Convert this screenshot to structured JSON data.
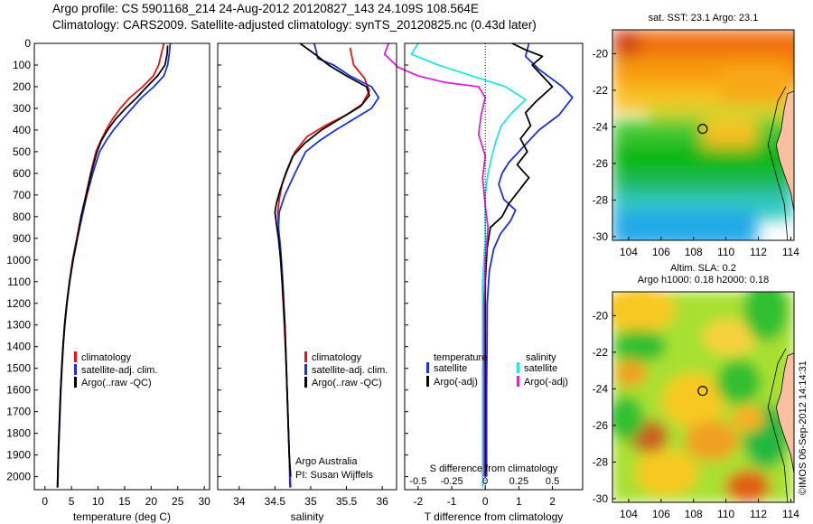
{
  "header": {
    "line1": "Argo profile: CS 5901168_214 24-Aug-2012 20120827_143 24.109S 108.564E",
    "line2": "Climatology: CARS2009. Satellite-adjusted climatology: synTS_20120825.nc (0.43d later)"
  },
  "watermark": "©IMOS 06-Sep-2012 14:14:31",
  "colors": {
    "climatology": "#ee1111",
    "satellite": "#1a2ee6",
    "argo": "#000000",
    "satellite_s": "#22e6e6",
    "argo_s": "#dd22dd"
  },
  "chart_data": [
    {
      "type": "line",
      "xlabel": "temperature (deg C)",
      "xlim": [
        -2,
        31
      ],
      "xticks": [
        0,
        5,
        10,
        15,
        20,
        25,
        30
      ],
      "ylim": [
        2060,
        0
      ],
      "yticks": [
        0,
        100,
        200,
        300,
        400,
        500,
        600,
        700,
        800,
        900,
        1000,
        1100,
        1200,
        1300,
        1400,
        1500,
        1600,
        1700,
        1800,
        1900,
        2000
      ],
      "legend": [
        "climatology",
        "satellite-adj. clim.",
        "Argo(..raw -QC)"
      ],
      "series": [
        {
          "name": "climatology",
          "color": "#ee1111",
          "points": [
            [
              22.4,
              0
            ],
            [
              21.9,
              50
            ],
            [
              21.4,
              100
            ],
            [
              20.4,
              150
            ],
            [
              18.4,
              200
            ],
            [
              16,
              250
            ],
            [
              14.2,
              300
            ],
            [
              12.7,
              350
            ],
            [
              11.5,
              400
            ],
            [
              10.5,
              450
            ],
            [
              9.6,
              500
            ],
            [
              8.6,
              600
            ],
            [
              7.7,
              700
            ],
            [
              6.8,
              800
            ],
            [
              6,
              900
            ],
            [
              5.2,
              1000
            ],
            [
              4.6,
              1100
            ],
            [
              4.1,
              1200
            ],
            [
              3.7,
              1300
            ],
            [
              3.4,
              1400
            ],
            [
              3.15,
              1500
            ],
            [
              2.95,
              1600
            ],
            [
              2.8,
              1700
            ],
            [
              2.65,
              1800
            ],
            [
              2.5,
              1900
            ],
            [
              2.35,
              2050
            ]
          ]
        },
        {
          "name": "satellite-adj. clim.",
          "color": "#1a2ee6",
          "points": [
            [
              23.6,
              0
            ],
            [
              23.4,
              50
            ],
            [
              23.1,
              100
            ],
            [
              22.4,
              150
            ],
            [
              20.5,
              200
            ],
            [
              18.2,
              250
            ],
            [
              16.4,
              300
            ],
            [
              14.6,
              350
            ],
            [
              12.9,
              400
            ],
            [
              11.5,
              450
            ],
            [
              10.3,
              500
            ],
            [
              9,
              600
            ],
            [
              7.9,
              700
            ],
            [
              7,
              800
            ],
            [
              6.1,
              900
            ],
            [
              5.3,
              1000
            ],
            [
              4.65,
              1100
            ],
            [
              4.15,
              1200
            ],
            [
              3.75,
              1300
            ],
            [
              3.45,
              1400
            ],
            [
              3.2,
              1500
            ],
            [
              3,
              1600
            ],
            [
              2.85,
              1700
            ],
            [
              2.7,
              1800
            ],
            [
              2.55,
              1900
            ],
            [
              2.4,
              2050
            ]
          ]
        },
        {
          "name": "Argo(..raw -QC)",
          "color": "#000000",
          "points": [
            [
              23.1,
              10
            ],
            [
              23,
              50
            ],
            [
              22.6,
              100
            ],
            [
              21.2,
              150
            ],
            [
              19.2,
              200
            ],
            [
              17.3,
              250
            ],
            [
              15.2,
              300
            ],
            [
              13.3,
              350
            ],
            [
              11.8,
              400
            ],
            [
              10.6,
              450
            ],
            [
              9.8,
              500
            ],
            [
              8.7,
              600
            ],
            [
              7.8,
              700
            ],
            [
              6.8,
              800
            ],
            [
              6.1,
              900
            ],
            [
              5.3,
              1000
            ],
            [
              4.65,
              1100
            ],
            [
              4.1,
              1200
            ],
            [
              3.7,
              1300
            ],
            [
              3.4,
              1400
            ],
            [
              3.15,
              1500
            ],
            [
              2.95,
              1600
            ],
            [
              2.8,
              1700
            ],
            [
              2.65,
              1800
            ],
            [
              2.5,
              1900
            ],
            [
              2.35,
              2050
            ]
          ]
        }
      ]
    },
    {
      "type": "line",
      "xlabel": "salinity",
      "xlim": [
        33.7,
        36.2
      ],
      "xticks": [
        34,
        34.5,
        35,
        35.5,
        36
      ],
      "ylim": [
        2060,
        0
      ],
      "legend": [
        "climatology",
        "satellite-adj. clim.",
        "Argo(..raw -QC)"
      ],
      "annotation": [
        "Argo Australia",
        "PI: Susan Wijffels"
      ],
      "series": [
        {
          "name": "climatology",
          "color": "#ee1111",
          "points": [
            [
              35.55,
              20
            ],
            [
              35.6,
              100
            ],
            [
              35.75,
              160
            ],
            [
              35.82,
              220
            ],
            [
              35.72,
              280
            ],
            [
              35.5,
              330
            ],
            [
              35.2,
              380
            ],
            [
              34.95,
              430
            ],
            [
              34.78,
              500
            ],
            [
              34.68,
              580
            ],
            [
              34.6,
              650
            ],
            [
              34.56,
              720
            ],
            [
              34.54,
              780
            ],
            [
              34.55,
              850
            ],
            [
              34.57,
              950
            ],
            [
              34.6,
              1100
            ],
            [
              34.63,
              1300
            ],
            [
              34.66,
              1500
            ],
            [
              34.68,
              1700
            ],
            [
              34.7,
              1900
            ],
            [
              34.72,
              2050
            ]
          ]
        },
        {
          "name": "satellite-adj. clim.",
          "color": "#1a2ee6",
          "points": [
            [
              35.05,
              0
            ],
            [
              35.08,
              40
            ],
            [
              35.1,
              70
            ],
            [
              35.32,
              100
            ],
            [
              35.55,
              150
            ],
            [
              35.85,
              200
            ],
            [
              35.95,
              250
            ],
            [
              35.85,
              300
            ],
            [
              35.6,
              350
            ],
            [
              35.35,
              400
            ],
            [
              35.12,
              450
            ],
            [
              34.93,
              500
            ],
            [
              34.78,
              600
            ],
            [
              34.64,
              700
            ],
            [
              34.56,
              780
            ],
            [
              34.55,
              850
            ],
            [
              34.58,
              950
            ],
            [
              34.61,
              1100
            ],
            [
              34.64,
              1300
            ],
            [
              34.66,
              1500
            ],
            [
              34.68,
              1700
            ],
            [
              34.7,
              1900
            ],
            [
              34.71,
              2050
            ]
          ]
        },
        {
          "name": "Argo(..raw -QC)",
          "color": "#000000",
          "points": [
            [
              34.85,
              0
            ],
            [
              35.1,
              60
            ],
            [
              35.25,
              100
            ],
            [
              35.5,
              150
            ],
            [
              35.78,
              200
            ],
            [
              35.82,
              240
            ],
            [
              35.7,
              290
            ],
            [
              35.45,
              340
            ],
            [
              35.15,
              400
            ],
            [
              34.92,
              460
            ],
            [
              34.75,
              520
            ],
            [
              34.65,
              600
            ],
            [
              34.57,
              680
            ],
            [
              34.52,
              740
            ],
            [
              34.5,
              780
            ],
            [
              34.52,
              830
            ],
            [
              34.55,
              900
            ],
            [
              34.58,
              1000
            ],
            [
              34.61,
              1150
            ],
            [
              34.64,
              1300
            ],
            [
              34.66,
              1500
            ],
            [
              34.68,
              1700
            ],
            [
              34.7,
              1900
            ],
            [
              34.72,
              2000
            ]
          ]
        }
      ]
    },
    {
      "type": "line",
      "xlabel": "T difference from climatology",
      "xlim": [
        -2.4,
        2.9
      ],
      "xticks": [
        -2,
        -1,
        0,
        1,
        2
      ],
      "top_axis_label": "S difference from climatology",
      "top_ticks": [
        "-0.5",
        "-0.25",
        "0",
        "0.25",
        "0.5"
      ],
      "ylim": [
        2060,
        0
      ],
      "legend": {
        "temperature": [
          "satellite",
          "Argo(-adj)"
        ],
        "salinity": [
          "satellite",
          "Argo(-adj)"
        ]
      },
      "series": [
        {
          "name": "satellite",
          "group": "temperature",
          "color": "#1a2ee6",
          "points": [
            [
              1.3,
              0
            ],
            [
              1.2,
              60
            ],
            [
              1.6,
              120
            ],
            [
              2.3,
              200
            ],
            [
              2.6,
              250
            ],
            [
              2.2,
              330
            ],
            [
              1.6,
              400
            ],
            [
              1.3,
              450
            ],
            [
              1.0,
              500
            ],
            [
              0.7,
              550
            ],
            [
              0.5,
              600
            ],
            [
              0.4,
              650
            ],
            [
              0.55,
              720
            ],
            [
              0.9,
              770
            ],
            [
              0.75,
              820
            ],
            [
              0.45,
              880
            ],
            [
              0.25,
              950
            ],
            [
              0.12,
              1050
            ],
            [
              0.06,
              1200
            ],
            [
              0.05,
              1400
            ],
            [
              0.04,
              1600
            ],
            [
              0.04,
              1800
            ],
            [
              0.04,
              2000
            ]
          ]
        },
        {
          "name": "Argo(-adj)",
          "group": "temperature",
          "color": "#000000",
          "points": [
            [
              0.8,
              0
            ],
            [
              1.2,
              30
            ],
            [
              1.7,
              60
            ],
            [
              1.4,
              100
            ],
            [
              1.7,
              150
            ],
            [
              2.0,
              200
            ],
            [
              1.5,
              270
            ],
            [
              1.2,
              320
            ],
            [
              1.35,
              380
            ],
            [
              1.05,
              440
            ],
            [
              1.25,
              500
            ],
            [
              0.95,
              560
            ],
            [
              1.3,
              620
            ],
            [
              1.0,
              680
            ],
            [
              0.7,
              740
            ],
            [
              0.5,
              800
            ],
            [
              0.15,
              850
            ],
            [
              0.05,
              950
            ],
            [
              0.0,
              1100
            ],
            [
              0.0,
              2000
            ]
          ]
        },
        {
          "name": "satellite",
          "group": "salinity",
          "color": "#22e6e6",
          "points": [
            [
              -0.5,
              0
            ],
            [
              -0.55,
              50
            ],
            [
              -0.35,
              100
            ],
            [
              -0.1,
              150
            ],
            [
              0.15,
              200
            ],
            [
              0.3,
              260
            ],
            [
              0.2,
              320
            ],
            [
              0.12,
              380
            ],
            [
              0.08,
              450
            ],
            [
              0.05,
              520
            ],
            [
              0.02,
              600
            ],
            [
              0.0,
              700
            ],
            [
              0.0,
              900
            ],
            [
              -0.02,
              1100
            ],
            [
              -0.02,
              1400
            ],
            [
              -0.02,
              1700
            ],
            [
              -0.02,
              2050
            ]
          ]
        },
        {
          "name": "Argo(-adj)",
          "group": "salinity",
          "color": "#dd22dd",
          "points": [
            [
              -0.72,
              0
            ],
            [
              -0.75,
              50
            ],
            [
              -0.65,
              110
            ],
            [
              -0.5,
              150
            ],
            [
              -0.3,
              180
            ],
            [
              -0.05,
              200
            ],
            [
              0.0,
              250
            ],
            [
              -0.03,
              330
            ],
            [
              -0.05,
              420
            ],
            [
              0.0,
              520
            ],
            [
              -0.02,
              620
            ],
            [
              0.0,
              750
            ],
            [
              0.02,
              850
            ],
            [
              0.0,
              1000
            ],
            [
              -0.01,
              1200
            ],
            [
              -0.01,
              2000
            ]
          ]
        }
      ]
    },
    {
      "type": "heatmap",
      "title": "sat. SST: 23.1 Argo: 23.1",
      "xticks": [
        104,
        106,
        108,
        110,
        112,
        114
      ],
      "yticks": [
        -20,
        -22,
        -24,
        -26,
        -28,
        -30
      ],
      "xlim": [
        103,
        114.2
      ],
      "ylim": [
        -30.2,
        -18.7
      ],
      "marker": {
        "lon": 108.564,
        "lat": -24.109
      }
    },
    {
      "type": "heatmap",
      "title": [
        "Altim. SLA: 0.2",
        "Argo h1000: 0.18 h2000: 0.18"
      ],
      "xticks": [
        104,
        106,
        108,
        110,
        112,
        114
      ],
      "yticks": [
        -20,
        -22,
        -24,
        -26,
        -28,
        -30
      ],
      "xlim": [
        103,
        114.2
      ],
      "ylim": [
        -30.2,
        -18.7
      ],
      "marker": {
        "lon": 108.564,
        "lat": -24.109
      }
    }
  ]
}
